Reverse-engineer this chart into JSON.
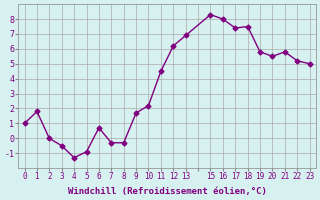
{
  "x": [
    0,
    1,
    2,
    3,
    4,
    5,
    6,
    7,
    8,
    9,
    10,
    11,
    12,
    13,
    15,
    16,
    17,
    18,
    19,
    20,
    21,
    22,
    23
  ],
  "y": [
    1.0,
    1.8,
    0.0,
    -0.5,
    -1.3,
    -0.9,
    0.7,
    -0.3,
    -0.3,
    1.7,
    2.2,
    4.5,
    6.2,
    6.9,
    8.3,
    8.0,
    7.4,
    7.5,
    5.8,
    5.5,
    5.8,
    5.2,
    5.0
  ],
  "line_color": "#800080",
  "marker_color": "#800080",
  "bg_color": "#d7f0f0",
  "grid_color": "#aaaaaa",
  "axis_color": "#800080",
  "xlabel": "Windchill (Refroidissement éolien,°C)",
  "xlim": [
    -0.5,
    23.5
  ],
  "ylim": [
    -2,
    9
  ],
  "yticks": [
    -1,
    0,
    1,
    2,
    3,
    4,
    5,
    6,
    7,
    8
  ],
  "xticks": [
    0,
    1,
    2,
    3,
    4,
    5,
    6,
    7,
    8,
    9,
    10,
    11,
    12,
    13,
    14,
    15,
    16,
    17,
    18,
    19,
    20,
    21,
    22,
    23
  ],
  "xtick_labels": [
    "0",
    "1",
    "2",
    "3",
    "4",
    "5",
    "6",
    "7",
    "8",
    "9",
    "10",
    "11",
    "12",
    "13",
    "",
    "15",
    "16",
    "17",
    "18",
    "19",
    "20",
    "21",
    "22",
    "23"
  ]
}
